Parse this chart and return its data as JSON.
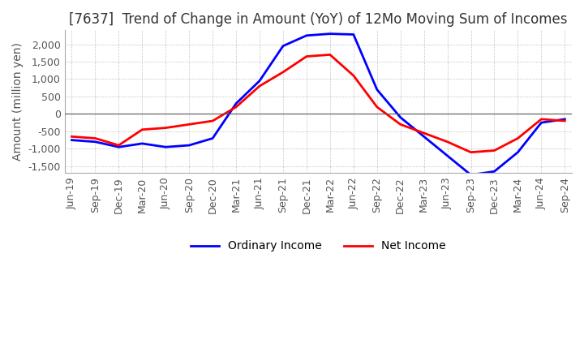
{
  "title": "[7637]  Trend of Change in Amount (YoY) of 12Mo Moving Sum of Incomes",
  "ylabel": "Amount (million yen)",
  "ylim": [
    -1700,
    2400
  ],
  "yticks": [
    -1500,
    -1000,
    -500,
    0,
    500,
    1000,
    1500,
    2000
  ],
  "x_labels": [
    "Jun-19",
    "Sep-19",
    "Dec-19",
    "Mar-20",
    "Jun-20",
    "Sep-20",
    "Dec-20",
    "Mar-21",
    "Jun-21",
    "Sep-21",
    "Dec-21",
    "Mar-22",
    "Jun-22",
    "Sep-22",
    "Dec-22",
    "Mar-23",
    "Jun-23",
    "Sep-23",
    "Dec-23",
    "Mar-24",
    "Jun-24",
    "Sep-24"
  ],
  "ordinary_income": [
    -750,
    -800,
    -950,
    -850,
    -950,
    -900,
    -700,
    300,
    950,
    1950,
    2250,
    2300,
    2280,
    700,
    -100,
    -650,
    -1200,
    -1750,
    -1650,
    -1100,
    -250,
    -150
  ],
  "net_income": [
    -650,
    -700,
    -900,
    -450,
    -400,
    -300,
    -200,
    200,
    800,
    1200,
    1650,
    1700,
    1100,
    200,
    -300,
    -550,
    -800,
    -1100,
    -1050,
    -700,
    -150,
    -200
  ],
  "ordinary_income_color": "#0000FF",
  "net_income_color": "#FF0000",
  "line_width": 2.0,
  "background_color": "#FFFFFF",
  "grid_color": "#AAAAAA",
  "title_fontsize": 12,
  "label_fontsize": 10,
  "tick_fontsize": 9,
  "zero_line_color": "#555555"
}
